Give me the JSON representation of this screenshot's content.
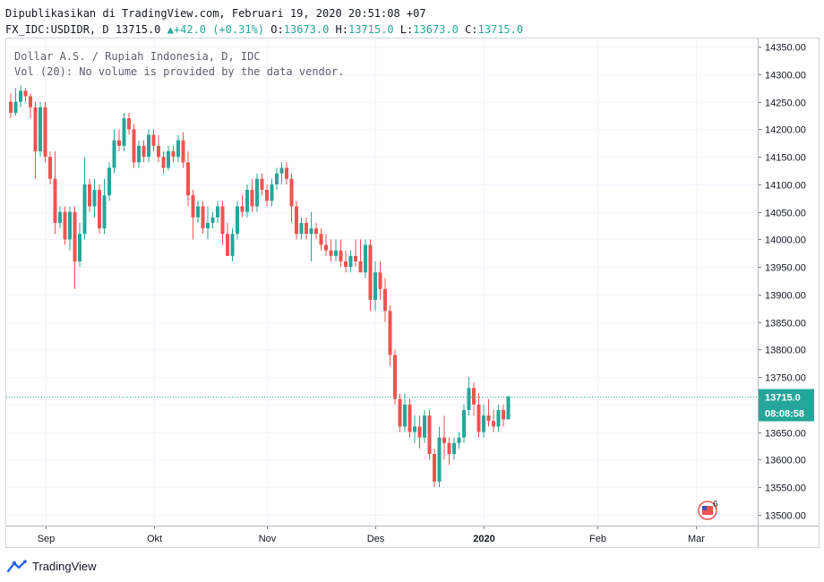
{
  "header": {
    "published": "Dipublikasikan di TradingView.com, Februari 19, 2020 20:51:08 +07",
    "symbol": "FX_IDC:USDIDR, D",
    "last": "13715.0",
    "change_arrow": "▲",
    "change": "+42.0 (+0.31%)",
    "o_label": "O:",
    "o_value": "13673.0",
    "h_label": "H:",
    "h_value": "13715.0",
    "l_label": "L:",
    "l_value": "13673.0",
    "c_label": "C:",
    "c_value": "13715.0"
  },
  "legend": {
    "line1": "Dollar A.S. / Rupiah Indonesia, D, IDC",
    "line2": "Vol (20): No volume is provided by the data vendor."
  },
  "price_badge": "13715.0",
  "time_badge": "08:08:58",
  "flag_badge": "6",
  "footer": {
    "brand": "TradingView",
    "logo_icon": "tradingview-logo-icon"
  },
  "colors": {
    "up": "#26a69a",
    "down": "#ef5350",
    "grid": "#f0f3fa",
    "text": "#131722"
  },
  "chart_data": {
    "type": "candlestick",
    "y_ticks": [
      13500,
      13550,
      13600,
      13650,
      13700,
      13750,
      13800,
      13850,
      13900,
      13950,
      14000,
      14050,
      14100,
      14150,
      14200,
      14250,
      14300,
      14350
    ],
    "ylim": [
      13480,
      14365
    ],
    "x_ticks": [
      "Sep",
      "Okt",
      "Nov",
      "Des",
      "2020",
      "Feb",
      "Mar"
    ],
    "x_tick_index": [
      7,
      29,
      52,
      74,
      96,
      119,
      139
    ],
    "last_price": 13715.0,
    "candles": [
      [
        14250,
        14265,
        14220,
        14230
      ],
      [
        14230,
        14275,
        14225,
        14250
      ],
      [
        14250,
        14280,
        14240,
        14270
      ],
      [
        14270,
        14275,
        14250,
        14260
      ],
      [
        14260,
        14265,
        14220,
        14240
      ],
      [
        14240,
        14250,
        14110,
        14160
      ],
      [
        14160,
        14250,
        14150,
        14240
      ],
      [
        14240,
        14250,
        14140,
        14150
      ],
      [
        14150,
        14160,
        14100,
        14110
      ],
      [
        14110,
        14160,
        14010,
        14030
      ],
      [
        14030,
        14060,
        14020,
        14050
      ],
      [
        14050,
        14060,
        13990,
        14000
      ],
      [
        14000,
        14060,
        13980,
        14050
      ],
      [
        14050,
        14060,
        13910,
        13960
      ],
      [
        13960,
        14030,
        13950,
        14010
      ],
      [
        14010,
        14150,
        14000,
        14100
      ],
      [
        14100,
        14110,
        14050,
        14060
      ],
      [
        14060,
        14110,
        14040,
        14090
      ],
      [
        14090,
        14100,
        14010,
        14020
      ],
      [
        14020,
        14110,
        14010,
        14080
      ],
      [
        14080,
        14140,
        14070,
        14130
      ],
      [
        14130,
        14200,
        14120,
        14180
      ],
      [
        14180,
        14200,
        14160,
        14170
      ],
      [
        14170,
        14230,
        14160,
        14220
      ],
      [
        14220,
        14230,
        14190,
        14200
      ],
      [
        14200,
        14210,
        14130,
        14140
      ],
      [
        14140,
        14180,
        14130,
        14170
      ],
      [
        14170,
        14180,
        14140,
        14150
      ],
      [
        14150,
        14200,
        14140,
        14190
      ],
      [
        14190,
        14200,
        14160,
        14170
      ],
      [
        14170,
        14190,
        14140,
        14150
      ],
      [
        14150,
        14160,
        14120,
        14130
      ],
      [
        14130,
        14170,
        14125,
        14160
      ],
      [
        14160,
        14170,
        14140,
        14150
      ],
      [
        14150,
        14190,
        14140,
        14180
      ],
      [
        14180,
        14195,
        14130,
        14140
      ],
      [
        14140,
        14160,
        14060,
        14080
      ],
      [
        14080,
        14090,
        14000,
        14040
      ],
      [
        14040,
        14070,
        14030,
        14060
      ],
      [
        14060,
        14070,
        14010,
        14020
      ],
      [
        14020,
        14060,
        14000,
        14030
      ],
      [
        14030,
        14050,
        14020,
        14040
      ],
      [
        14040,
        14070,
        14030,
        14060
      ],
      [
        14060,
        14070,
        13990,
        14010
      ],
      [
        14010,
        14030,
        13970,
        13970
      ],
      [
        13970,
        14020,
        13960,
        14010
      ],
      [
        14010,
        14070,
        14000,
        14060
      ],
      [
        14060,
        14080,
        14040,
        14050
      ],
      [
        14050,
        14100,
        14040,
        14090
      ],
      [
        14090,
        14110,
        14050,
        14060
      ],
      [
        14060,
        14120,
        14050,
        14110
      ],
      [
        14110,
        14120,
        14080,
        14090
      ],
      [
        14090,
        14100,
        14060,
        14070
      ],
      [
        14070,
        14110,
        14060,
        14100
      ],
      [
        14100,
        14130,
        14090,
        14120
      ],
      [
        14120,
        14140,
        14100,
        14130
      ],
      [
        14130,
        14140,
        14100,
        14110
      ],
      [
        14110,
        14120,
        14030,
        14060
      ],
      [
        14060,
        14070,
        14000,
        14010
      ],
      [
        14010,
        14040,
        14000,
        14030
      ],
      [
        14030,
        14040,
        14000,
        14010
      ],
      [
        14010,
        14050,
        13960,
        14020
      ],
      [
        14020,
        14030,
        14000,
        14010
      ],
      [
        14010,
        14020,
        13980,
        13990
      ],
      [
        13990,
        14010,
        13970,
        13980
      ],
      [
        13980,
        14000,
        13960,
        13970
      ],
      [
        13970,
        14000,
        13960,
        13980
      ],
      [
        13980,
        14000,
        13950,
        13960
      ],
      [
        13960,
        13980,
        13940,
        13950
      ],
      [
        13950,
        13980,
        13940,
        13970
      ],
      [
        13970,
        14000,
        13950,
        13960
      ],
      [
        13960,
        14000,
        13940,
        13940
      ],
      [
        13940,
        14000,
        13930,
        13990
      ],
      [
        13990,
        14000,
        13870,
        13890
      ],
      [
        13890,
        13960,
        13870,
        13940
      ],
      [
        13940,
        13960,
        13890,
        13910
      ],
      [
        13910,
        13930,
        13850,
        13870
      ],
      [
        13870,
        13880,
        13770,
        13790
      ],
      [
        13790,
        13800,
        13700,
        13710
      ],
      [
        13710,
        13720,
        13650,
        13660
      ],
      [
        13660,
        13720,
        13650,
        13700
      ],
      [
        13700,
        13710,
        13640,
        13650
      ],
      [
        13650,
        13680,
        13630,
        13660
      ],
      [
        13660,
        13680,
        13620,
        13640
      ],
      [
        13640,
        13690,
        13630,
        13680
      ],
      [
        13680,
        13690,
        13600,
        13610
      ],
      [
        13610,
        13620,
        13550,
        13560
      ],
      [
        13560,
        13660,
        13550,
        13640
      ],
      [
        13640,
        13680,
        13600,
        13630
      ],
      [
        13630,
        13640,
        13590,
        13610
      ],
      [
        13610,
        13640,
        13600,
        13630
      ],
      [
        13630,
        13650,
        13620,
        13640
      ],
      [
        13640,
        13700,
        13630,
        13690
      ],
      [
        13690,
        13750,
        13680,
        13730
      ],
      [
        13730,
        13740,
        13680,
        13700
      ],
      [
        13700,
        13720,
        13640,
        13650
      ],
      [
        13650,
        13700,
        13640,
        13680
      ],
      [
        13680,
        13710,
        13660,
        13670
      ],
      [
        13670,
        13690,
        13650,
        13660
      ],
      [
        13660,
        13700,
        13650,
        13690
      ],
      [
        13690,
        13700,
        13660,
        13673
      ],
      [
        13673,
        13715,
        13673,
        13715
      ]
    ]
  }
}
